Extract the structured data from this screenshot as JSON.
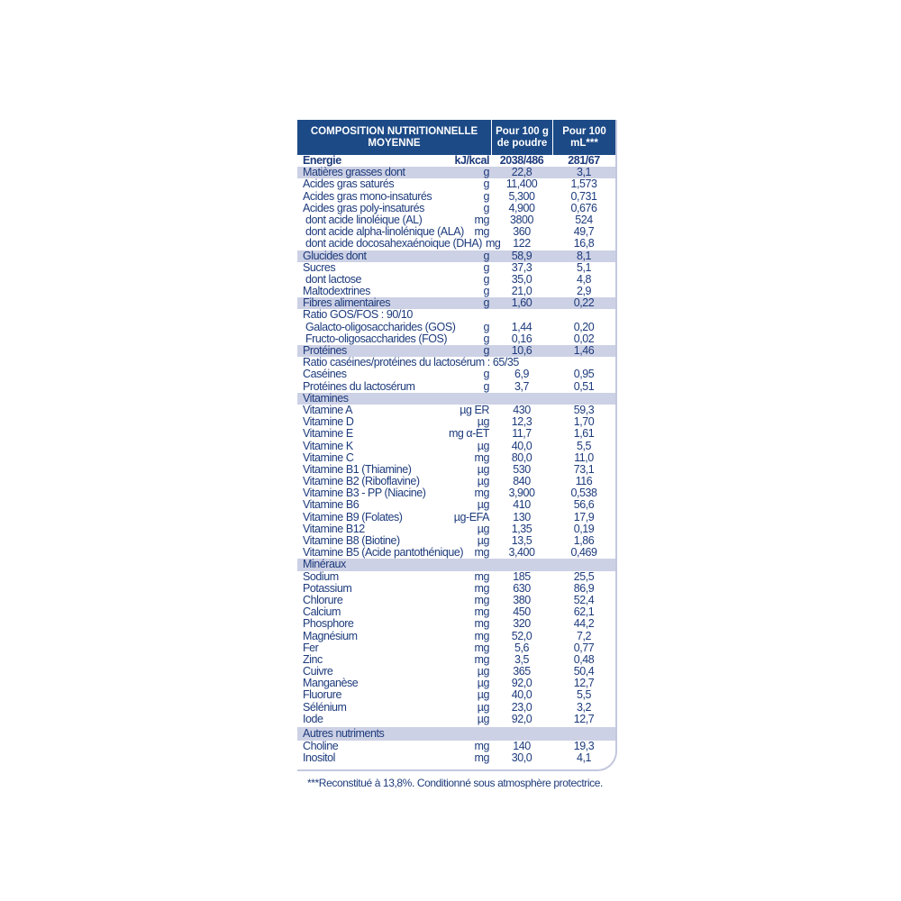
{
  "header": {
    "col0": "COMPOSITION NUTRITIONNELLE MOYENNE",
    "col1": "Pour 100 g de poudre",
    "col2": "Pour 100 mL***"
  },
  "rows": [
    {
      "label": "Energie",
      "unit": "kJ/kcal",
      "v1": "2038/486",
      "v2": "281/67",
      "style": "bold"
    },
    {
      "label": "Matières grasses dont",
      "unit": "g",
      "v1": "22,8",
      "v2": "3,1",
      "style": "hl"
    },
    {
      "label": "Acides gras saturés",
      "unit": "g",
      "v1": "11,400",
      "v2": "1,573"
    },
    {
      "label": "Acides gras mono-insaturés",
      "unit": "g",
      "v1": "5,300",
      "v2": "0,731"
    },
    {
      "label": "Acides gras poly-insaturés",
      "unit": "g",
      "v1": "4,900",
      "v2": "0,676"
    },
    {
      "label": "dont acide linoléique (AL)",
      "unit": "mg",
      "v1": "3800",
      "v2": "524",
      "indent": true
    },
    {
      "label": "dont acide alpha-linolénique (ALA)",
      "unit": "mg",
      "v1": "360",
      "v2": "49,7",
      "indent": true
    },
    {
      "label": "dont acide docosahexaénoique (DHA)",
      "unit": "mg",
      "v1": "122",
      "v2": "16,8",
      "indent": true
    },
    {
      "label": "Glucides dont",
      "unit": "g",
      "v1": "58,9",
      "v2": "8,1",
      "style": "hl"
    },
    {
      "label": "Sucres",
      "unit": "g",
      "v1": "37,3",
      "v2": "5,1"
    },
    {
      "label": "dont lactose",
      "unit": "g",
      "v1": "35,0",
      "v2": "4,8",
      "indent": true
    },
    {
      "label": "Maltodextrines",
      "unit": "g",
      "v1": "21,0",
      "v2": "2,9"
    },
    {
      "label": "Fibres alimentaires",
      "unit": "g",
      "v1": "1,60",
      "v2": "0,22",
      "style": "hl"
    },
    {
      "label": "Ratio GOS/FOS : 90/10",
      "unit": "",
      "v1": "",
      "v2": ""
    },
    {
      "label": "Galacto-oligosaccharides (GOS)",
      "unit": "g",
      "v1": "1,44",
      "v2": "0,20",
      "indent": true
    },
    {
      "label": "Fructo-oligosaccharides (FOS)",
      "unit": "g",
      "v1": "0,16",
      "v2": "0,02",
      "indent": true
    },
    {
      "label": "Protéines",
      "unit": "g",
      "v1": "10,6",
      "v2": "1,46",
      "style": "hl"
    },
    {
      "label": "Ratio caséines/protéines du lactosérum : 65/35",
      "unit": "",
      "v1": "",
      "v2": ""
    },
    {
      "label": "Caséines",
      "unit": "g",
      "v1": "6,9",
      "v2": "0,95"
    },
    {
      "label": "Protéines du lactosérum",
      "unit": "g",
      "v1": "3,7",
      "v2": "0,51"
    },
    {
      "label": "Vitamines",
      "unit": "",
      "v1": "",
      "v2": "",
      "style": "hl"
    },
    {
      "label": "Vitamine A",
      "unit": "µg ER",
      "v1": "430",
      "v2": "59,3"
    },
    {
      "label": "Vitamine D",
      "unit": "µg",
      "v1": "12,3",
      "v2": "1,70"
    },
    {
      "label": "Vitamine E",
      "unit": "mg α-ET",
      "v1": "11,7",
      "v2": "1,61"
    },
    {
      "label": "Vitamine K",
      "unit": "µg",
      "v1": "40,0",
      "v2": "5,5"
    },
    {
      "label": "Vitamine C",
      "unit": "mg",
      "v1": "80,0",
      "v2": "11,0"
    },
    {
      "label": "Vitamine B1 (Thiamine)",
      "unit": "µg",
      "v1": "530",
      "v2": "73,1"
    },
    {
      "label": "Vitamine B2 (Riboflavine)",
      "unit": "µg",
      "v1": "840",
      "v2": "116"
    },
    {
      "label": "Vitamine B3 - PP (Niacine)",
      "unit": "mg",
      "v1": "3,900",
      "v2": "0,538"
    },
    {
      "label": "Vitamine B6",
      "unit": "µg",
      "v1": "410",
      "v2": "56,6"
    },
    {
      "label": "Vitamine B9 (Folates)",
      "unit": "µg-EFA",
      "v1": "130",
      "v2": "17,9"
    },
    {
      "label": "Vitamine B12",
      "unit": "µg",
      "v1": "1,35",
      "v2": "0,19"
    },
    {
      "label": "Vitamine B8 (Biotine)",
      "unit": "µg",
      "v1": "13,5",
      "v2": "1,86"
    },
    {
      "label": "Vitamine B5 (Acide pantothénique)",
      "unit": "mg",
      "v1": "3,400",
      "v2": "0,469"
    },
    {
      "label": "Minéraux",
      "unit": "",
      "v1": "",
      "v2": "",
      "style": "hl"
    },
    {
      "label": "Sodium",
      "unit": "mg",
      "v1": "185",
      "v2": "25,5"
    },
    {
      "label": "Potassium",
      "unit": "mg",
      "v1": "630",
      "v2": "86,9"
    },
    {
      "label": "Chlorure",
      "unit": "mg",
      "v1": "380",
      "v2": "52,4"
    },
    {
      "label": "Calcium",
      "unit": "mg",
      "v1": "450",
      "v2": "62,1"
    },
    {
      "label": "Phosphore",
      "unit": "mg",
      "v1": "320",
      "v2": "44,2"
    },
    {
      "label": "Magnésium",
      "unit": "mg",
      "v1": "52,0",
      "v2": "7,2"
    },
    {
      "label": "Fer",
      "unit": "mg",
      "v1": "5,6",
      "v2": "0,77"
    },
    {
      "label": "Zinc",
      "unit": "mg",
      "v1": "3,5",
      "v2": "0,48"
    },
    {
      "label": "Cuivre",
      "unit": "µg",
      "v1": "365",
      "v2": "50,4"
    },
    {
      "label": "Manganèse",
      "unit": "µg",
      "v1": "92,0",
      "v2": "12,7"
    },
    {
      "label": "Fluorure",
      "unit": "µg",
      "v1": "40,0",
      "v2": "5,5"
    },
    {
      "label": "Sélénium",
      "unit": "µg",
      "v1": "23,0",
      "v2": "3,2"
    },
    {
      "label": "Iode",
      "unit": "µg",
      "v1": "92,0",
      "v2": "12,7"
    },
    {
      "label": "Autres nutriments",
      "unit": "",
      "v1": "",
      "v2": "",
      "style": "hl sec"
    },
    {
      "label": "Choline",
      "unit": "mg",
      "v1": "140",
      "v2": "19,3"
    },
    {
      "label": "Inositol",
      "unit": "mg",
      "v1": "30,0",
      "v2": "4,1"
    }
  ],
  "footnote": "***Reconstitué à 13,8%. Conditionné sous atmosphère protectrice.",
  "colors": {
    "header_bg": "#1c4a87",
    "highlight_bg": "#cdd1e5",
    "text": "#1d3b7c"
  }
}
